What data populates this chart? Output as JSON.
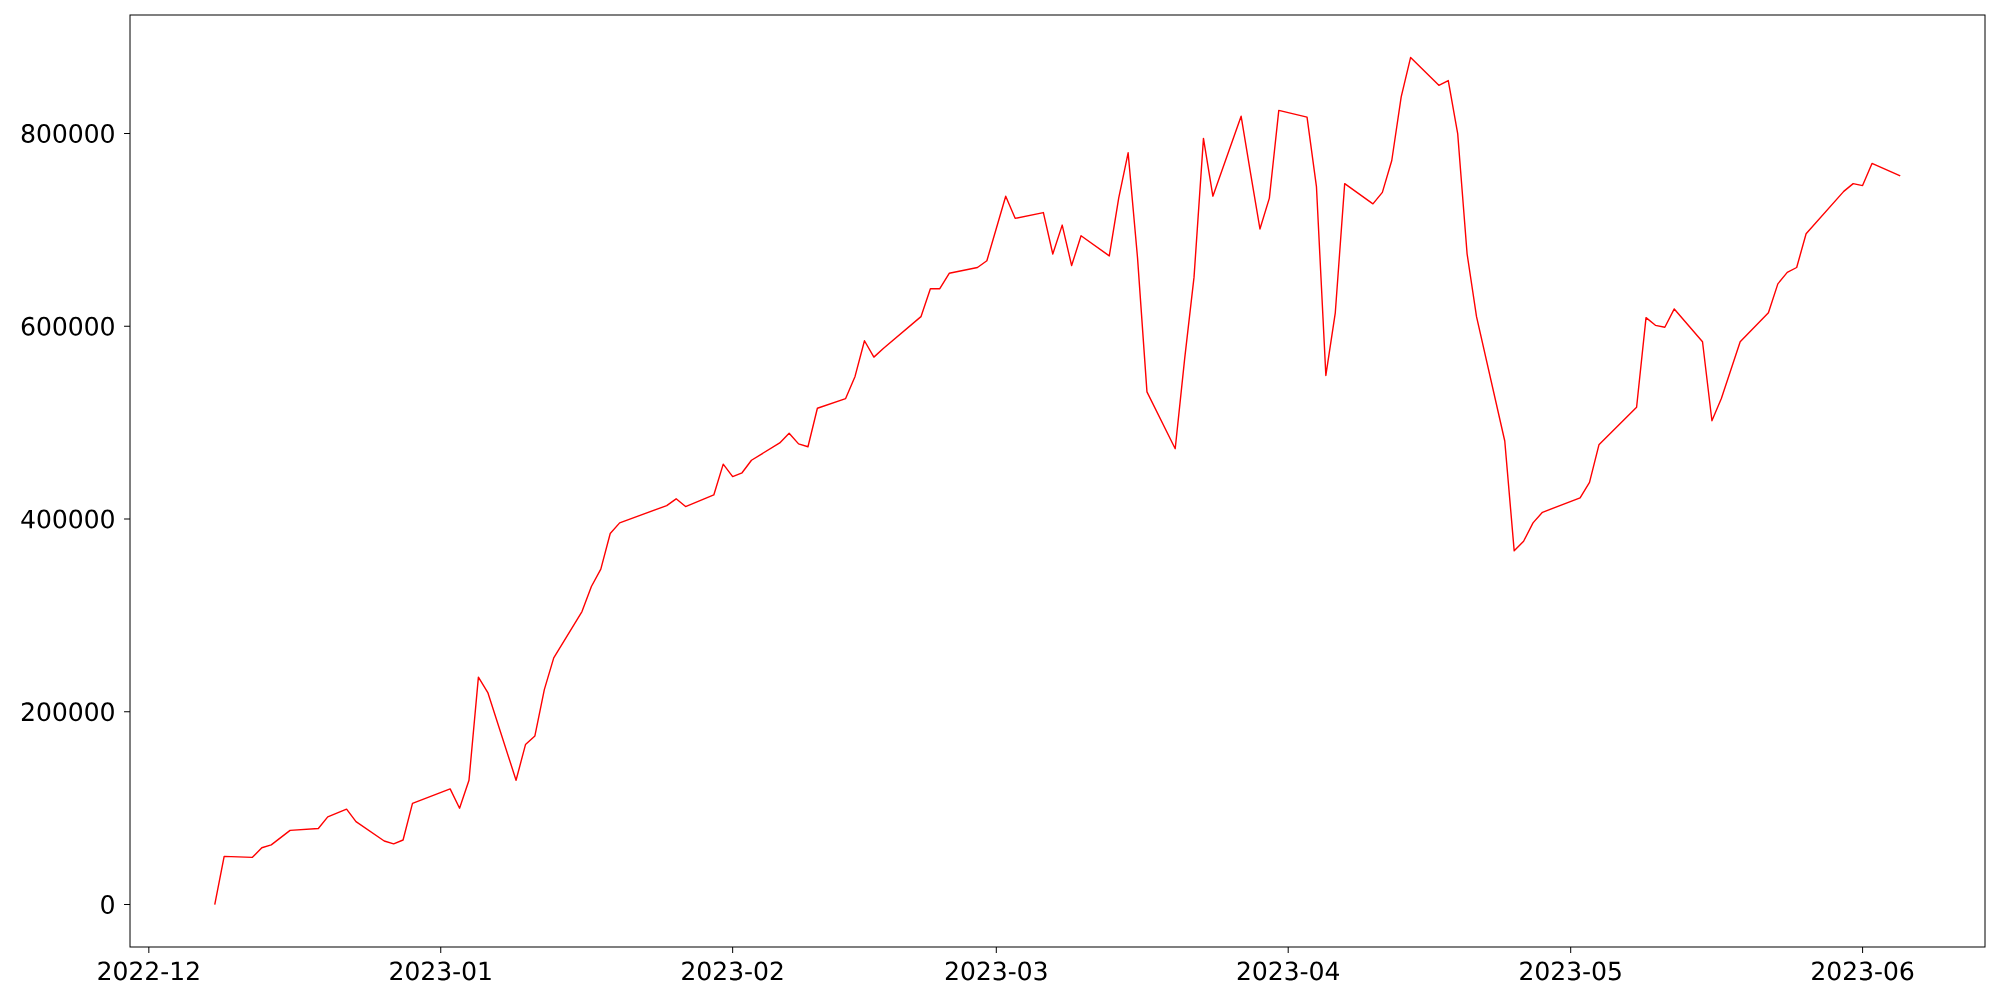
{
  "chart_data": {
    "type": "line",
    "color": "#ff0000",
    "x": [
      "2022-12-08",
      "2022-12-09",
      "2022-12-12",
      "2022-12-13",
      "2022-12-14",
      "2022-12-16",
      "2022-12-19",
      "2022-12-20",
      "2022-12-22",
      "2022-12-23",
      "2022-12-26",
      "2022-12-27",
      "2022-12-28",
      "2022-12-29",
      "2023-01-02",
      "2023-01-03",
      "2023-01-04",
      "2023-01-05",
      "2023-01-06",
      "2023-01-09",
      "2023-01-10",
      "2023-01-11",
      "2023-01-12",
      "2023-01-13",
      "2023-01-16",
      "2023-01-17",
      "2023-01-18",
      "2023-01-19",
      "2023-01-20",
      "2023-01-25",
      "2023-01-26",
      "2023-01-27",
      "2023-01-30",
      "2023-01-31",
      "2023-02-01",
      "2023-02-02",
      "2023-02-03",
      "2023-02-06",
      "2023-02-07",
      "2023-02-08",
      "2023-02-09",
      "2023-02-10",
      "2023-02-13",
      "2023-02-14",
      "2023-02-15",
      "2023-02-16",
      "2023-02-17",
      "2023-02-21",
      "2023-02-22",
      "2023-02-23",
      "2023-02-24",
      "2023-02-27",
      "2023-02-28",
      "2023-03-02",
      "2023-03-03",
      "2023-03-06",
      "2023-03-07",
      "2023-03-08",
      "2023-03-09",
      "2023-03-10",
      "2023-03-13",
      "2023-03-14",
      "2023-03-15",
      "2023-03-16",
      "2023-03-17",
      "2023-03-20",
      "2023-03-21",
      "2023-03-22",
      "2023-03-23",
      "2023-03-24",
      "2023-03-27",
      "2023-03-28",
      "2023-03-29",
      "2023-03-30",
      "2023-03-31",
      "2023-04-03",
      "2023-04-04",
      "2023-04-05",
      "2023-04-06",
      "2023-04-07",
      "2023-04-10",
      "2023-04-11",
      "2023-04-12",
      "2023-04-13",
      "2023-04-14",
      "2023-04-17",
      "2023-04-18",
      "2023-04-19",
      "2023-04-20",
      "2023-04-21",
      "2023-04-24",
      "2023-04-25",
      "2023-04-26",
      "2023-04-27",
      "2023-04-28",
      "2023-05-02",
      "2023-05-03",
      "2023-05-04",
      "2023-05-08",
      "2023-05-09",
      "2023-05-10",
      "2023-05-11",
      "2023-05-12",
      "2023-05-15",
      "2023-05-16",
      "2023-05-17",
      "2023-05-19",
      "2023-05-22",
      "2023-05-23",
      "2023-05-24",
      "2023-05-25",
      "2023-05-26",
      "2023-05-30",
      "2023-05-31",
      "2023-06-01",
      "2023-06-02",
      "2023-06-05"
    ],
    "values": [
      0,
      50000,
      49000,
      59000,
      62000,
      77000,
      79000,
      91000,
      99000,
      86000,
      66000,
      63000,
      67000,
      105000,
      120000,
      100000,
      129000,
      236000,
      220000,
      129000,
      166000,
      175000,
      223000,
      256000,
      304000,
      330000,
      348000,
      385000,
      396000,
      414000,
      421000,
      413000,
      425000,
      457000,
      444000,
      448000,
      461000,
      479000,
      489000,
      478000,
      475000,
      515000,
      525000,
      548000,
      585000,
      568000,
      577000,
      610000,
      639000,
      639000,
      655000,
      661000,
      668000,
      735000,
      712000,
      718000,
      675000,
      705000,
      663000,
      694000,
      673000,
      733000,
      780000,
      671000,
      532000,
      473000,
      566000,
      651000,
      795000,
      735000,
      818000,
      759000,
      701000,
      733000,
      824000,
      817000,
      745000,
      549000,
      614000,
      748000,
      727000,
      739000,
      772000,
      838000,
      879000,
      850000,
      855000,
      800000,
      675000,
      610000,
      481000,
      367000,
      377000,
      396000,
      407000,
      422000,
      438000,
      477000,
      516000,
      609000,
      601000,
      599000,
      618000,
      584000,
      502000,
      525000,
      584000,
      614000,
      644000,
      656000,
      661000,
      696000,
      740000,
      748000,
      746000,
      769000,
      756000
    ],
    "xlim": [
      "2022-11-29",
      "2023-06-14"
    ],
    "ylim": [
      -44000,
      923000
    ],
    "xticks": [
      {
        "value": "2022-12-01",
        "label": "2022-12"
      },
      {
        "value": "2023-01-01",
        "label": "2023-01"
      },
      {
        "value": "2023-02-01",
        "label": "2023-02"
      },
      {
        "value": "2023-03-01",
        "label": "2023-03"
      },
      {
        "value": "2023-04-01",
        "label": "2023-04"
      },
      {
        "value": "2023-05-01",
        "label": "2023-05"
      },
      {
        "value": "2023-06-01",
        "label": "2023-06"
      }
    ],
    "yticks": [
      0,
      200000,
      400000,
      600000,
      800000
    ]
  }
}
